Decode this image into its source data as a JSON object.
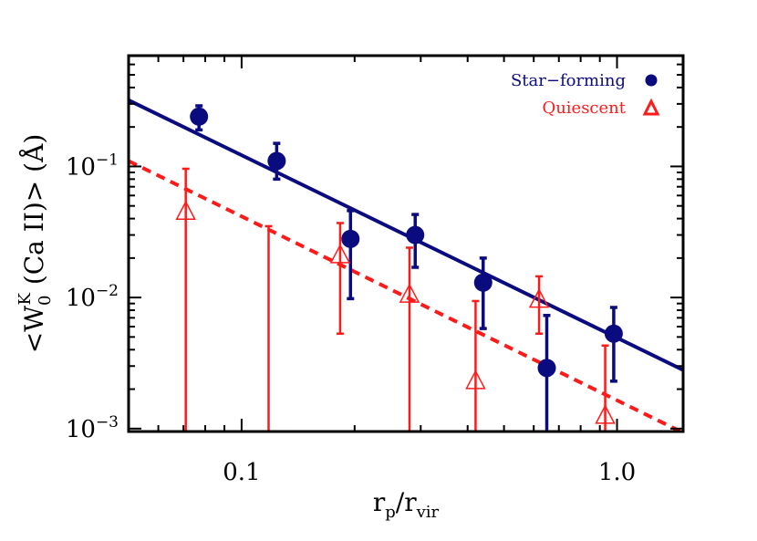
{
  "chart_data": {
    "type": "scatter",
    "xlabel_main": "r",
    "xlabel_sub1": "p",
    "xlabel_mid": "/r",
    "xlabel_sub2": "vir",
    "ylabel_pre": "<W",
    "ylabel_sub": "0",
    "ylabel_sup": "K",
    "ylabel_post": " (Ca II)> (Å)",
    "x_scale": "log",
    "y_scale": "log",
    "xlim": [
      0.05,
      1.5
    ],
    "ylim": [
      0.00095,
      0.7
    ],
    "x_ticks": [
      {
        "value": 0.1,
        "label": "0.1"
      },
      {
        "value": 1.0,
        "label": "1.0"
      }
    ],
    "y_ticks": [
      {
        "value": 0.001,
        "base": "10",
        "exp": "−3"
      },
      {
        "value": 0.01,
        "base": "10",
        "exp": "−2"
      },
      {
        "value": 0.1,
        "base": "10",
        "exp": "−1"
      }
    ],
    "legend_position": "top-right",
    "series": [
      {
        "name": "Star−forming",
        "color": "#0b0b80",
        "marker": "filled-circle",
        "points": [
          {
            "x": 0.077,
            "y": 0.24,
            "lo": 0.19,
            "hi": 0.29
          },
          {
            "x": 0.124,
            "y": 0.11,
            "lo": 0.08,
            "hi": 0.15
          },
          {
            "x": 0.195,
            "y": 0.028,
            "lo": 0.0098,
            "hi": 0.046
          },
          {
            "x": 0.29,
            "y": 0.03,
            "lo": 0.017,
            "hi": 0.043
          },
          {
            "x": 0.44,
            "y": 0.013,
            "lo": 0.0058,
            "hi": 0.02
          },
          {
            "x": 0.65,
            "y": 0.0029,
            "lo": 0.00095,
            "hi": 0.0073
          },
          {
            "x": 0.98,
            "y": 0.0053,
            "lo": 0.0023,
            "hi": 0.0084
          }
        ],
        "fit": {
          "x": [
            0.05,
            1.5
          ],
          "y": [
            0.32,
            0.0028
          ],
          "style": "solid"
        }
      },
      {
        "name": "Quiescent",
        "color": "#ff1a1a",
        "marker": "open-triangle",
        "points": [
          {
            "x": 0.071,
            "y": 0.045,
            "lo": 0.00095,
            "hi": 0.096
          },
          {
            "x": 0.118,
            "y": null,
            "lo": 0.00095,
            "hi": 0.035
          },
          {
            "x": 0.183,
            "y": 0.021,
            "lo": 0.0053,
            "hi": 0.037
          },
          {
            "x": 0.28,
            "y": 0.0105,
            "lo": 0.00095,
            "hi": 0.024
          },
          {
            "x": 0.42,
            "y": 0.0023,
            "lo": 0.00095,
            "hi": 0.0094
          },
          {
            "x": 0.62,
            "y": 0.0096,
            "lo": 0.0053,
            "hi": 0.0145
          },
          {
            "x": 0.93,
            "y": 0.00125,
            "lo": 0.00095,
            "hi": 0.0043
          }
        ],
        "fit": {
          "x": [
            0.05,
            1.5
          ],
          "y": [
            0.11,
            0.00093
          ],
          "style": "dashed"
        }
      }
    ]
  }
}
